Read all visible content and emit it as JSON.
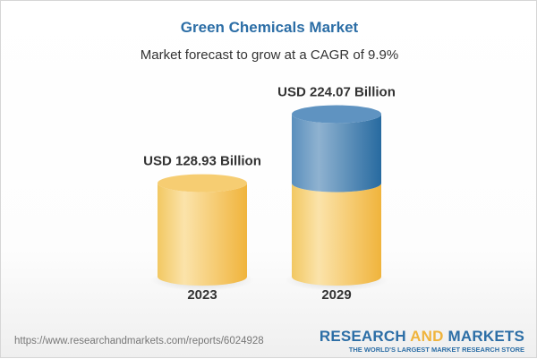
{
  "header": {
    "title": "Green Chemicals Market",
    "subtitle": "Market forecast to grow at a CAGR of 9.9%"
  },
  "chart_data": {
    "type": "bar",
    "style": "3d-cylinder",
    "categories": [
      "2023",
      "2029"
    ],
    "values": [
      128.93,
      224.07
    ],
    "data_labels": [
      "USD 128.93 Billion",
      "USD 224.07 Billion"
    ],
    "unit": "USD Billion",
    "colors": {
      "base": "#f3c35a",
      "growth": "#3f7fb3"
    },
    "grid": false
  },
  "footer": {
    "url": "https://www.researchandmarkets.com/reports/6024928",
    "logo_part1": "RESEARCH",
    "logo_part2": "AND",
    "logo_part3": "MARKETS",
    "tagline": "THE WORLD'S LARGEST MARKET RESEARCH STORE"
  }
}
